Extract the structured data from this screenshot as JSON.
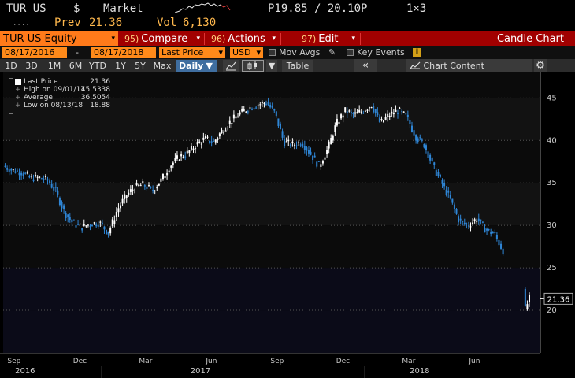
{
  "ticker": {
    "symbol": "TUR US",
    "currency": "$",
    "market_label": "Market",
    "bid_ask": "P19.85 / 20.10P",
    "size": "1×3",
    "prev_label": "Prev",
    "prev_value": "21.36",
    "vol_label": "Vol",
    "vol_value": "6,130",
    "dots": "....",
    "spark_icon": "intraday-sparkline"
  },
  "cmdbar": {
    "security": "TUR US Equity",
    "compare_num": "95)",
    "compare_label": "Compare",
    "actions_num": "96)",
    "actions_label": "Actions",
    "edit_num": "97)",
    "edit_label": "Edit",
    "title": "Candle Chart",
    "dropdown_icon": "▾"
  },
  "optbar": {
    "start_date": "08/17/2016",
    "dash": "-",
    "end_date": "08/17/2018",
    "field": "Last Price",
    "currency": "USD",
    "mov_avgs": "Mov Avgs",
    "key_events": "Key Events",
    "info": "i"
  },
  "periodbar": {
    "periods": [
      "1D",
      "3D",
      "1M",
      "6M",
      "YTD",
      "1Y",
      "5Y",
      "Max"
    ],
    "frequency": "Daily",
    "table": "Table",
    "collapse": "«",
    "chart_content": "Chart Content"
  },
  "legend": {
    "last_label": "Last Price",
    "last_value": "21.36",
    "high_label": "High on 09/01/17",
    "high_value": "45.5338",
    "avg_label": "Average",
    "avg_value": "36.5054",
    "low_label": "Low on 08/13/18",
    "low_value": "18.88"
  },
  "colors": {
    "up": "#ffffff",
    "down": "#2f86d6",
    "accent": "#ff8a1a",
    "bar_red": "#a10000"
  },
  "chart_data": {
    "type": "line",
    "title": "",
    "ylim": [
      15,
      48
    ],
    "y_ticks": [
      20,
      25,
      30,
      35,
      40,
      45
    ],
    "x_tick_labels": [
      "Sep",
      "Dec",
      "Mar",
      "Jun",
      "Sep",
      "Dec",
      "Mar",
      "Jun"
    ],
    "x_tick_month_index": [
      0.5,
      3.5,
      6.5,
      9.5,
      12.5,
      15.5,
      18.5,
      21.5
    ],
    "year_labels": [
      "2016",
      "2017",
      "2018"
    ],
    "year_month_index": [
      1.0,
      9.0,
      19.0
    ],
    "year_dividers": [
      4.5,
      16.5
    ],
    "last_price_tag": "21.36",
    "series": [
      {
        "x": [
          0,
          0.4,
          0.8,
          1.2,
          1.6,
          2.0,
          2.4,
          2.8,
          3.2,
          3.6,
          4.0,
          4.4,
          4.8,
          5.2,
          5.6,
          6.0,
          6.4,
          6.8,
          7.2,
          7.6,
          8.0,
          8.4,
          8.8,
          9.2,
          9.6,
          10.0,
          10.4,
          10.8,
          11.2,
          11.6,
          12.0,
          12.4,
          12.8,
          13.2,
          13.6,
          14.0,
          14.4,
          14.8,
          15.2,
          15.6,
          16.0,
          16.4,
          16.8,
          17.2,
          17.6,
          18.0,
          18.4,
          18.8,
          19.2,
          19.6,
          20.0,
          20.4,
          20.8,
          21.2,
          21.6,
          22.0,
          22.4,
          22.8,
          23.2,
          23.6,
          23.8,
          24.0
        ],
        "y": [
          37.0,
          36.5,
          36.3,
          35.6,
          35.6,
          35.4,
          34.0,
          31.5,
          30.2,
          29.8,
          30.2,
          30.3,
          29.1,
          31.8,
          33.5,
          34.5,
          34.8,
          34.1,
          35.3,
          37.0,
          38.0,
          38.5,
          39.5,
          40.2,
          39.8,
          41.2,
          42.3,
          43.2,
          43.8,
          44.2,
          44.5,
          43.2,
          39.8,
          39.5,
          39.8,
          38.5,
          37.0,
          39.0,
          42.0,
          43.5,
          43.0,
          43.5,
          44.2,
          42.0,
          43.0,
          43.5,
          42.8,
          40.5,
          39.5,
          37.0,
          35.0,
          33.0,
          30.5,
          30.0,
          30.8,
          29.5,
          29.0,
          27.0,
          28.0,
          26.0,
          20.0,
          21.4
        ]
      }
    ]
  }
}
